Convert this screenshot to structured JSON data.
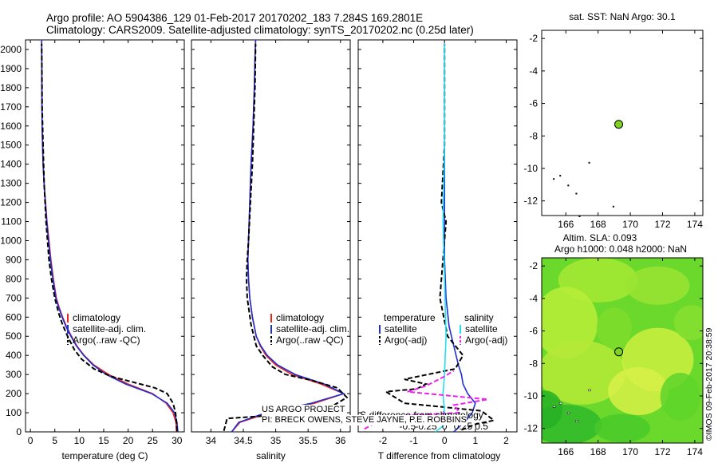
{
  "header": {
    "line1": "Argo profile: AO 5904386_129 01-Feb-2017 20170202_183 7.284S 169.2801E",
    "line2": "Climatology: CARS2009. Satellite-adjusted climatology: synTS_20170202.nc (0.25d later)"
  },
  "credits": {
    "project": "US ARGO PROJECT",
    "pi": "PI: BRECK OWENS, STEVE JAYNE, P.E. ROBBINS"
  },
  "stamp": "©IMOS 09-Feb-2017 20:38:59",
  "colors": {
    "climatology": "#e8241c",
    "satellite": "#1f2fd6",
    "argo": "#000000",
    "sat_sal": "#22e0f0",
    "argo_sal": "#ee22ee",
    "float": "#7ed321"
  },
  "chart_data": [
    {
      "type": "line",
      "title": "",
      "xlabel": "temperature (deg C)",
      "ylabel": "",
      "xlim": [
        -1,
        31.5
      ],
      "ylim": [
        2050,
        0
      ],
      "xticks": [
        0,
        5,
        10,
        15,
        20,
        25,
        30
      ],
      "xticklabels": [
        "0",
        "5",
        "10",
        "15",
        "20",
        "25",
        "30"
      ],
      "yticks": [
        0,
        100,
        200,
        300,
        400,
        500,
        600,
        700,
        800,
        900,
        1000,
        1100,
        1200,
        1300,
        1400,
        1500,
        1600,
        1700,
        1800,
        1900,
        2000
      ],
      "yticklabels": [
        "0",
        "100",
        "200",
        "300",
        "400",
        "500",
        "600",
        "700",
        "800",
        "900",
        "1000",
        "1100",
        "1200",
        "1300",
        "1400",
        "1500",
        "1600",
        "1700",
        "1800",
        "1900",
        "2000"
      ],
      "legend": [
        "climatology",
        "satellite-adj. clim.",
        "Argo(..raw -QC)"
      ],
      "series": [
        {
          "name": "climatology",
          "color": "#e8241c",
          "dash": "",
          "x": [
            29.9,
            29.8,
            29.2,
            27.8,
            25,
            20,
            16,
            13,
            11,
            9.5,
            8.4,
            7.4,
            6.6,
            5.9,
            5.3,
            4.7,
            4.2,
            3.8,
            3.4,
            3.1,
            2.8,
            2.6,
            2.5,
            2.4,
            2.35,
            2.3
          ],
          "y": [
            0,
            50,
            100,
            150,
            200,
            250,
            300,
            350,
            400,
            450,
            500,
            550,
            600,
            650,
            700,
            800,
            900,
            1000,
            1100,
            1200,
            1300,
            1400,
            1500,
            1600,
            1800,
            2050
          ]
        },
        {
          "name": "satellite-adj. clim.",
          "color": "#1f2fd6",
          "dash": "",
          "x": [
            30.2,
            30,
            29.5,
            28,
            24.8,
            19.5,
            15.5,
            12.8,
            10.9,
            9.4,
            8.3,
            7.3,
            6.5,
            5.8,
            5.2,
            4.6,
            4.1,
            3.7,
            3.35,
            3.05,
            2.8,
            2.6,
            2.5,
            2.4,
            2.35,
            2.3
          ],
          "y": [
            0,
            50,
            100,
            150,
            200,
            250,
            300,
            350,
            400,
            450,
            500,
            550,
            600,
            650,
            700,
            800,
            900,
            1000,
            1100,
            1200,
            1300,
            1400,
            1500,
            1600,
            1800,
            2050
          ]
        },
        {
          "name": "Argo(..raw -QC)",
          "color": "#000000",
          "dash": "6,3",
          "x": [
            30,
            29.9,
            29.7,
            29.2,
            28,
            25.5,
            21,
            16.5,
            13,
            10.5,
            9,
            7.6,
            6.6,
            5.8,
            5,
            4.3,
            3.8,
            3.2,
            2.8,
            2.6,
            2.4,
            2.35,
            2.3
          ],
          "y": [
            5,
            50,
            100,
            150,
            200,
            230,
            260,
            290,
            330,
            380,
            430,
            500,
            560,
            620,
            700,
            800,
            900,
            1100,
            1300,
            1500,
            1700,
            1900,
            2030
          ]
        }
      ]
    },
    {
      "type": "line",
      "title": "",
      "xlabel": "salinity",
      "ylabel": "",
      "xlim": [
        33.7,
        36.15
      ],
      "ylim": [
        2050,
        0
      ],
      "xticks": [
        34,
        34.5,
        35,
        35.5,
        36
      ],
      "xticklabels": [
        "34",
        "34.5",
        "35",
        "35.5",
        "36"
      ],
      "legend": [
        "climatology",
        "satellite-adj. clim.",
        "Argo(..raw -QC)"
      ],
      "series": [
        {
          "name": "climatology",
          "color": "#e8241c",
          "dash": "",
          "x": [
            34.32,
            34.45,
            34.9,
            35.6,
            36.05,
            35.7,
            35.25,
            35,
            34.85,
            34.76,
            34.7,
            34.64,
            34.6,
            34.58,
            34.57,
            34.58,
            34.6,
            34.62,
            34.65,
            34.67,
            34.68,
            34.69
          ],
          "y": [
            0,
            50,
            100,
            150,
            200,
            250,
            300,
            350,
            400,
            450,
            500,
            600,
            700,
            800,
            900,
            1000,
            1200,
            1400,
            1600,
            1800,
            1950,
            2050
          ]
        },
        {
          "name": "satellite-adj. clim.",
          "color": "#1f2fd6",
          "dash": "",
          "x": [
            34.32,
            34.43,
            34.85,
            35.55,
            36.05,
            35.75,
            35.3,
            35.03,
            34.87,
            34.77,
            34.7,
            34.64,
            34.6,
            34.58,
            34.57,
            34.58,
            34.6,
            34.62,
            34.65,
            34.67,
            34.68,
            34.69
          ],
          "y": [
            0,
            50,
            100,
            150,
            200,
            250,
            300,
            350,
            400,
            450,
            500,
            600,
            700,
            800,
            900,
            1000,
            1200,
            1400,
            1600,
            1800,
            1950,
            2050
          ]
        },
        {
          "name": "Argo(..raw -QC)",
          "color": "#000000",
          "dash": "6,3",
          "x": [
            34.2,
            34.25,
            34.9,
            35.7,
            36.1,
            35.95,
            35.55,
            35.15,
            34.95,
            34.8,
            34.7,
            34.62,
            34.56,
            34.55,
            34.56,
            34.58,
            34.61,
            34.64,
            34.66,
            34.68,
            34.69
          ],
          "y": [
            5,
            70,
            85,
            100,
            180,
            230,
            270,
            300,
            340,
            400,
            450,
            560,
            700,
            800,
            900,
            1000,
            1200,
            1400,
            1600,
            1800,
            2030
          ]
        }
      ]
    },
    {
      "type": "line",
      "title": "",
      "xlabel": "T difference from climatology",
      "xlabel_top": "S difference from climatology",
      "ylabel": "",
      "xlim": [
        -2.8,
        2.35
      ],
      "ylim": [
        2050,
        0
      ],
      "xticks": [
        -2,
        -1,
        0,
        1,
        2
      ],
      "xticklabels": [
        "-2",
        "-1",
        "0",
        "1",
        "2"
      ],
      "sxticks": [
        -0.5,
        -0.25,
        0,
        0.25,
        0.5
      ],
      "sxticklabels": [
        "-0.5",
        "-0.25",
        "0",
        "0.25",
        "0.5"
      ],
      "legend_headers": [
        "temperature",
        "salinity"
      ],
      "legend": [
        "satellite",
        "Argo(-adj)",
        "satellite",
        "Argo(-adj)"
      ],
      "series": [
        {
          "name": "temperature satellite",
          "color": "#1f2fd6",
          "dash": "",
          "x": [
            0.3,
            0.5,
            0.7,
            0.9,
            1.0,
            0.75,
            0.6,
            0.55,
            0.45,
            0.3,
            0.15,
            0.05,
            0,
            0,
            0
          ],
          "y": [
            0,
            30,
            60,
            100,
            150,
            200,
            250,
            300,
            350,
            450,
            550,
            700,
            900,
            1400,
            2030
          ]
        },
        {
          "name": "temperature Argo(-adj)",
          "color": "#000000",
          "dash": "6,3",
          "x": [
            0.55,
            1.0,
            1.6,
            1.2,
            -1.3,
            -1.9,
            -0.9,
            -0.6,
            -1.3,
            0.35,
            0.6,
            0.1,
            -0.15,
            0.05,
            -0.1,
            0,
            0
          ],
          "y": [
            10,
            40,
            60,
            110,
            150,
            210,
            225,
            250,
            275,
            330,
            400,
            500,
            700,
            1100,
            1200,
            1500,
            2030
          ]
        },
        {
          "name": "salinity satellite",
          "color": "#22e0f0",
          "dash": "",
          "x": [
            -0.3,
            -0.05,
            0.1,
            0,
            -0.05,
            0,
            0.05,
            0,
            -0.05,
            0,
            0
          ],
          "y": [
            0,
            30,
            60,
            100,
            200,
            300,
            500,
            800,
            1100,
            1500,
            2030
          ]
        },
        {
          "name": "salinity Argo(-adj)",
          "color": "#ee22ee",
          "dash": "6,3",
          "x": [
            -2.6,
            -2.2,
            -1.3,
            0.5,
            0.3,
            1.4,
            -1.2,
            -0.6,
            0,
            0.3
          ],
          "y": [
            15,
            50,
            85,
            100,
            140,
            170,
            210,
            240,
            290,
            320
          ]
        }
      ]
    },
    {
      "type": "scatter",
      "title": "sat. SST: NaN Argo: 30.1",
      "xlim": [
        164.5,
        174.5
      ],
      "ylim": [
        -12.9,
        -1.5
      ],
      "xticks": [
        166,
        168,
        170,
        172,
        174
      ],
      "xticklabels": [
        "166",
        "168",
        "170",
        "172",
        "174"
      ],
      "yticks": [
        -2,
        -4,
        -6,
        -8,
        -10,
        -12
      ],
      "yticklabels": [
        "-2",
        "-4",
        "-6",
        "-8",
        "-10",
        "-12"
      ],
      "points": [
        {
          "lon": 169.28,
          "lat": -7.284
        }
      ]
    },
    {
      "type": "heatmap",
      "title_line1": "Altim. SLA: 0.093",
      "title_line2": "Argo h1000: 0.048 h2000: NaN",
      "xlim": [
        164.5,
        174.5
      ],
      "ylim": [
        -12.9,
        -1.5
      ],
      "xticks": [
        166,
        168,
        170,
        172,
        174
      ],
      "xticklabels": [
        "166",
        "168",
        "170",
        "172",
        "174"
      ],
      "yticks": [
        -2,
        -4,
        -6,
        -8,
        -10,
        -12
      ],
      "yticklabels": [
        "-2",
        "-4",
        "-6",
        "-8",
        "-10",
        "-12"
      ],
      "points": [
        {
          "lon": 169.28,
          "lat": -7.284
        }
      ]
    }
  ]
}
